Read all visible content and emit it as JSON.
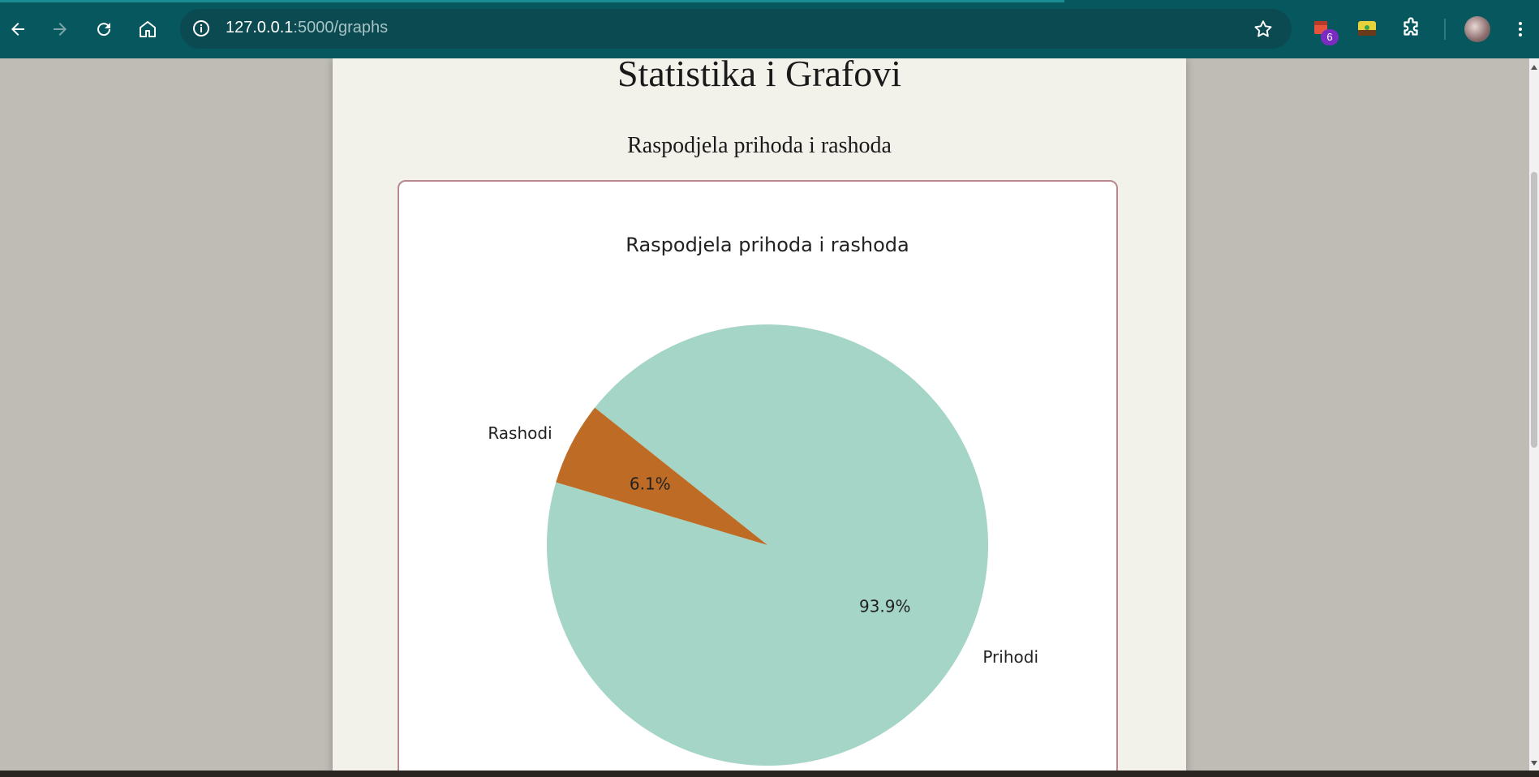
{
  "browser": {
    "url_host": "127.0.0.1",
    "url_rest": ":5000/graphs",
    "extension_badge": "6",
    "icons": [
      "back-arrow-icon",
      "forward-arrow-icon",
      "reload-icon",
      "home-icon",
      "site-info-icon",
      "bookmark-star-icon",
      "extensions-puzzle-icon",
      "menu-kebab-icon"
    ]
  },
  "page": {
    "title": "Statistika i Grafovi",
    "section_title": "Raspodjela prihoda i rashoda"
  },
  "chart_data": {
    "type": "pie",
    "title": "Raspodjela prihoda i rashoda",
    "labels": [
      "Prihodi",
      "Rashodi"
    ],
    "values": [
      93.9,
      6.1
    ],
    "value_labels": [
      "93.9%",
      "6.1%"
    ],
    "colors": [
      "#a5d5c6",
      "#bd6b25"
    ]
  }
}
